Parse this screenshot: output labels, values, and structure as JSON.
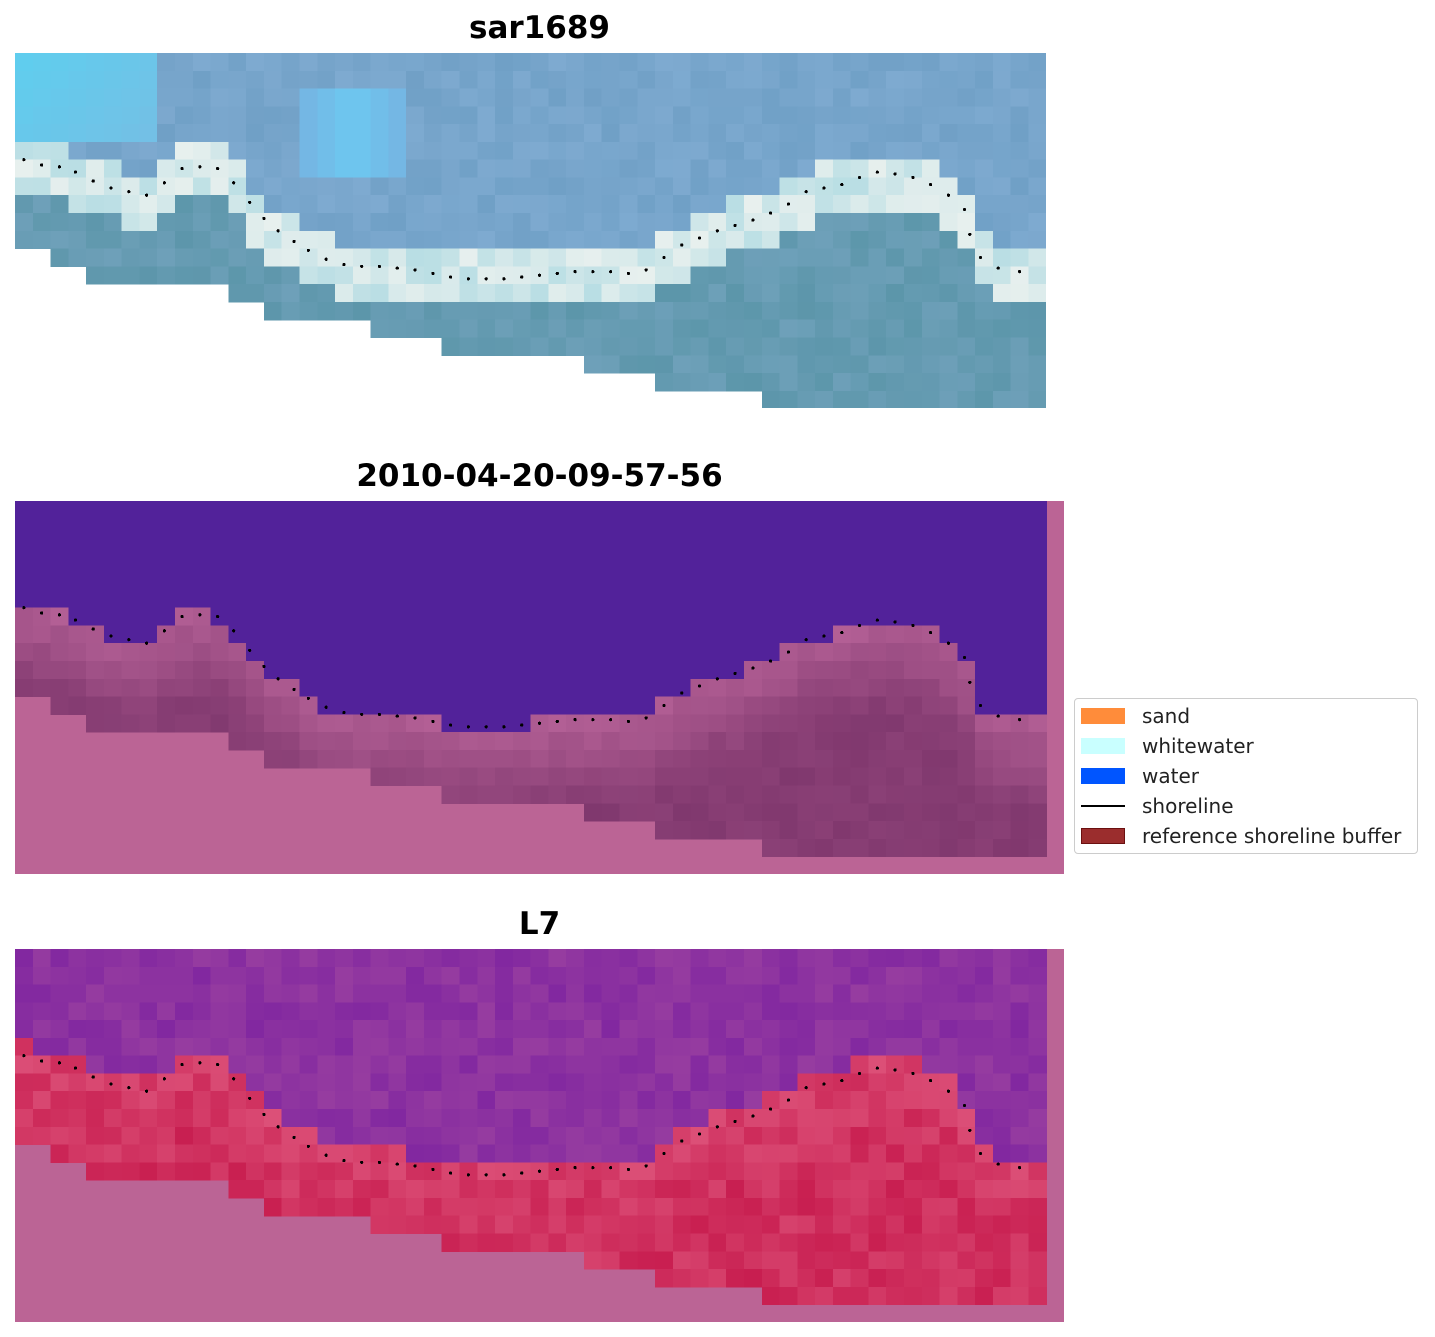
{
  "panels": [
    {
      "title": "sar1689",
      "style": "rgb"
    },
    {
      "title": "2010-04-20-09-57-56",
      "style": "classified"
    },
    {
      "title": "L7",
      "style": "index"
    }
  ],
  "legend": {
    "items": [
      {
        "label": "sand",
        "color": "#ff8c3a",
        "kind": "patch"
      },
      {
        "label": "whitewater",
        "color": "#c9ffff",
        "kind": "patch"
      },
      {
        "label": "water",
        "color": "#0055ff",
        "kind": "patch"
      },
      {
        "label": "shoreline",
        "color": "#000000",
        "kind": "line"
      },
      {
        "label": "reference shoreline buffer",
        "color": "#9b2d2d",
        "kind": "patch"
      }
    ]
  },
  "colors": {
    "water_class": "#52229a",
    "buffer_overlay": "#bb6495",
    "shoreline_points": "#000000"
  },
  "chart_data": {
    "type": "heatmap",
    "grid": {
      "cols": 58,
      "rows": 20
    },
    "shoreline_points": [
      [
        0.5,
        6.0
      ],
      [
        1.5,
        6.3
      ],
      [
        2.5,
        6.4
      ],
      [
        3.4,
        6.7
      ],
      [
        4.4,
        7.2
      ],
      [
        5.4,
        7.6
      ],
      [
        6.4,
        7.8
      ],
      [
        7.4,
        8.0
      ],
      [
        8.4,
        7.3
      ],
      [
        9.4,
        6.5
      ],
      [
        10.4,
        6.4
      ],
      [
        11.4,
        6.5
      ],
      [
        12.3,
        7.3
      ],
      [
        13.2,
        8.4
      ],
      [
        14.0,
        9.3
      ],
      [
        14.8,
        10.0
      ],
      [
        15.7,
        10.6
      ],
      [
        16.5,
        11.1
      ],
      [
        17.5,
        11.6
      ],
      [
        18.5,
        11.9
      ],
      [
        19.5,
        12.0
      ],
      [
        20.5,
        12.0
      ],
      [
        21.5,
        12.1
      ],
      [
        22.5,
        12.2
      ],
      [
        23.5,
        12.4
      ],
      [
        24.5,
        12.6
      ],
      [
        25.5,
        12.7
      ],
      [
        26.5,
        12.7
      ],
      [
        27.5,
        12.7
      ],
      [
        28.5,
        12.6
      ],
      [
        29.5,
        12.5
      ],
      [
        30.5,
        12.4
      ],
      [
        31.5,
        12.3
      ],
      [
        32.5,
        12.3
      ],
      [
        33.5,
        12.3
      ],
      [
        34.5,
        12.4
      ],
      [
        35.5,
        12.2
      ],
      [
        36.5,
        11.5
      ],
      [
        37.5,
        10.8
      ],
      [
        38.5,
        10.4
      ],
      [
        39.5,
        10.0
      ],
      [
        40.5,
        9.7
      ],
      [
        41.5,
        9.4
      ],
      [
        42.5,
        9.0
      ],
      [
        43.5,
        8.5
      ],
      [
        44.5,
        7.8
      ],
      [
        45.5,
        7.6
      ],
      [
        46.5,
        7.4
      ],
      [
        47.5,
        7.0
      ],
      [
        48.5,
        6.7
      ],
      [
        49.5,
        6.8
      ],
      [
        50.5,
        7.0
      ],
      [
        51.5,
        7.4
      ],
      [
        52.5,
        8.0
      ],
      [
        53.4,
        8.8
      ],
      [
        53.7,
        10.2
      ],
      [
        54.3,
        11.5
      ],
      [
        55.3,
        12.1
      ],
      [
        56.5,
        12.3
      ]
    ]
  }
}
